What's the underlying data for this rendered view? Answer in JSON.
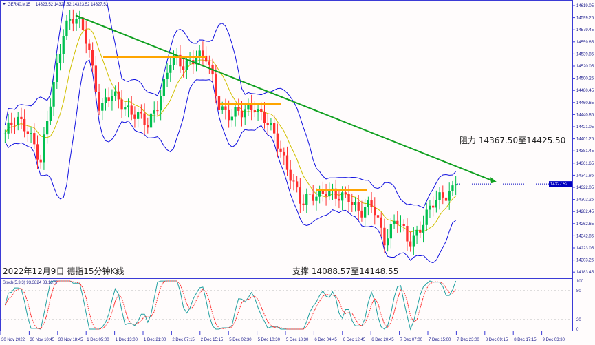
{
  "header": {
    "symbol": "GER40,M15",
    "ohlc": "14323.52 14327.52 14323.52 14327.52"
  },
  "stoch_header": "Stoch(5,3,3) 93.3824 83.1875",
  "colors": {
    "frame": "#3b3bd6",
    "band": "#1010e0",
    "bull": "#00c050",
    "bear": "#ff3030",
    "ma": "#d0c000",
    "trend": "#10a020",
    "level": "#ffa500",
    "stoch_main": "#20a0a0",
    "stoch_signal": "#ff3030"
  },
  "chart_data": {
    "type": "candlestick",
    "price_ticks": [
      "14619.05",
      "14599.25",
      "14579.45",
      "14559.65",
      "14539.85",
      "14520.05",
      "14500.25",
      "14480.45",
      "14460.65",
      "14440.85",
      "14421.05",
      "14401.25",
      "14381.45",
      "14361.65",
      "14341.85",
      "14322.05",
      "14302.25",
      "14282.45",
      "14262.65",
      "14242.85",
      "14223.05",
      "14203.25",
      "14183.45"
    ],
    "current_price": "14327.52",
    "ylim": [
      14183.45,
      14619.05
    ],
    "time_ticks": [
      "30 Nov 2022",
      "30 Nov 10:45",
      "30 Nov 18:45",
      "1 Dec 05:00",
      "1 Dec 13:00",
      "1 Dec 21:00",
      "2 Dec 07:15",
      "2 Dec 15:15",
      "5 Dec 02:30",
      "5 Dec 10:30",
      "5 Dec 18:30",
      "6 Dec 04:45",
      "6 Dec 12:45",
      "6 Dec 20:45",
      "7 Dec 07:00",
      "7 Dec 15:00",
      "7 Dec 23:00",
      "8 Dec 09:15",
      "8 Dec 17:15",
      "9 Dec 03:30"
    ],
    "close_path": [
      14410,
      14430,
      14420,
      14360,
      14480,
      14590,
      14595,
      14560,
      14450,
      14470,
      14460,
      14440,
      14420,
      14470,
      14530,
      14520,
      14540,
      14530,
      14460,
      14440,
      14440,
      14460,
      14430,
      14390,
      14350,
      14290,
      14310,
      14320,
      14300,
      14310,
      14280,
      14290,
      14240,
      14270,
      14230,
      14260,
      14290,
      14310,
      14327.52
    ],
    "trend_line": {
      "from": 14603,
      "to": 14332
    },
    "levels": [
      14534.7,
      14458.2,
      14317.6
    ],
    "stoch_ticks": [
      "100",
      "80",
      "20",
      "0"
    ],
    "annotations": {
      "resistance": "阻力 14367.50至14425.50",
      "title": "2022年12月9日 德指15分钟K线",
      "support": "支撑 14088.57至14148.55"
    }
  }
}
